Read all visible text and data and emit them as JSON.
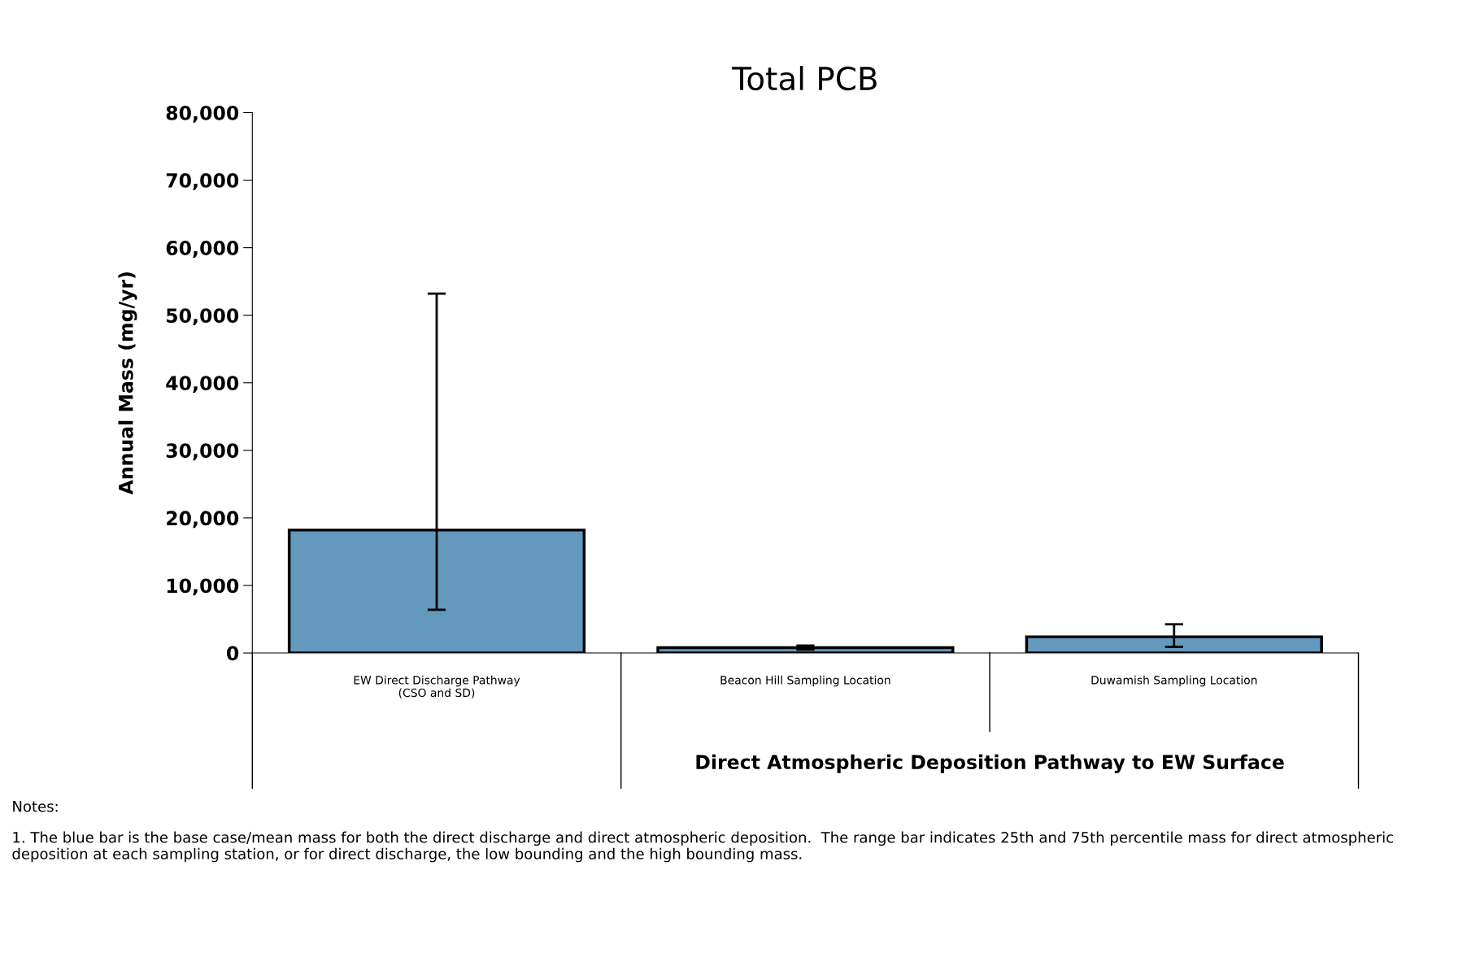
{
  "chart_data": {
    "type": "bar",
    "title": "Total PCB",
    "ylabel": "Annual Mass (mg/yr)",
    "categories": [
      "EW Direct Discharge Pathway\n(CSO and SD)",
      "Beacon Hill Sampling Location",
      "Duwamish Sampling Location"
    ],
    "values": [
      18200,
      800,
      2400
    ],
    "errors": [
      [
        6400,
        53200
      ],
      [
        500,
        1100
      ],
      [
        900,
        4250
      ]
    ],
    "color": "#6399bd",
    "ylim": [
      0,
      80000
    ],
    "yticks": [
      {
        "value": 0,
        "label": "0"
      },
      {
        "value": 10000,
        "label": "10,000"
      },
      {
        "value": 20000,
        "label": "20,000"
      },
      {
        "value": 30000,
        "label": "30,000"
      },
      {
        "value": 40000,
        "label": "40,000"
      },
      {
        "value": 50000,
        "label": "50,000"
      },
      {
        "value": 60000,
        "label": "60,000"
      },
      {
        "value": 70000,
        "label": "70,000"
      },
      {
        "value": 80000,
        "label": "80,000"
      }
    ],
    "grid": false,
    "legend": false,
    "annotations": [
      "Direct Atmospheric Deposition Pathway to EW Surface",
      "Notes:",
      "1. The blue bar is the base case/mean mass for both the direct discharge and direct atmospheric deposition.  The range bar indicates 25th and 75th percentile mass for direct atmospheric deposition at each sampling station, or for direct discharge, the low bounding and the high bounding mass."
    ]
  }
}
